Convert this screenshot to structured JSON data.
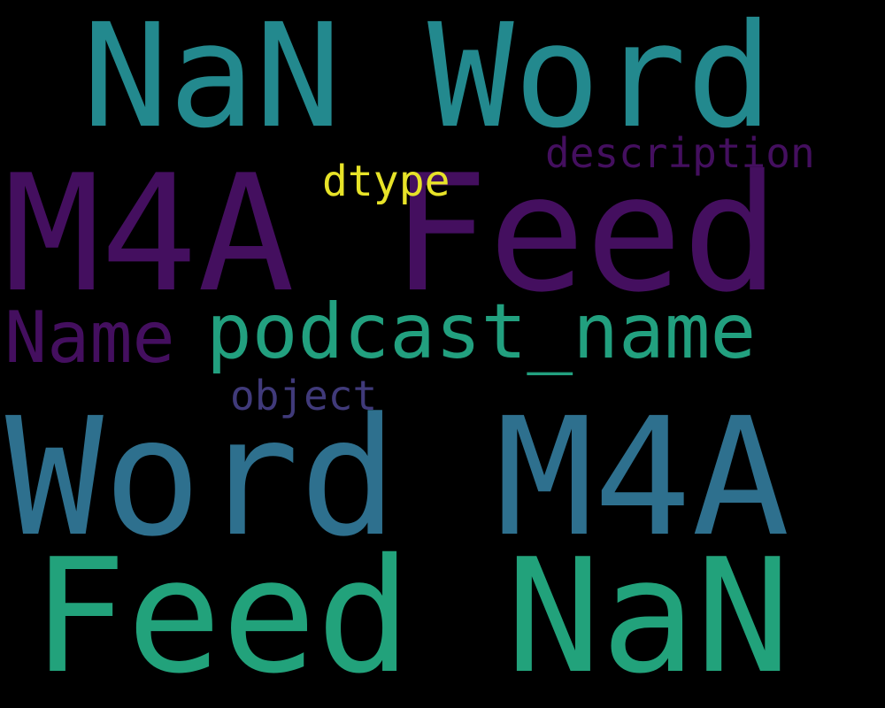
{
  "cloud": {
    "background": "#000000",
    "words": [
      {
        "text": "NaN Word",
        "color": "#23898e"
      },
      {
        "text": "M4A Feed",
        "color": "#440f5f"
      },
      {
        "text": "description",
        "color": "#440f5f"
      },
      {
        "text": "dtype",
        "color": "#e7e328"
      },
      {
        "text": "Name",
        "color": "#440f5f"
      },
      {
        "text": "podcast_name",
        "color": "#22a07f"
      },
      {
        "text": "object",
        "color": "#403a7a"
      },
      {
        "text": "Word M4A",
        "color": "#2e708e"
      },
      {
        "text": "Feed NaN",
        "color": "#22a27b"
      }
    ]
  }
}
